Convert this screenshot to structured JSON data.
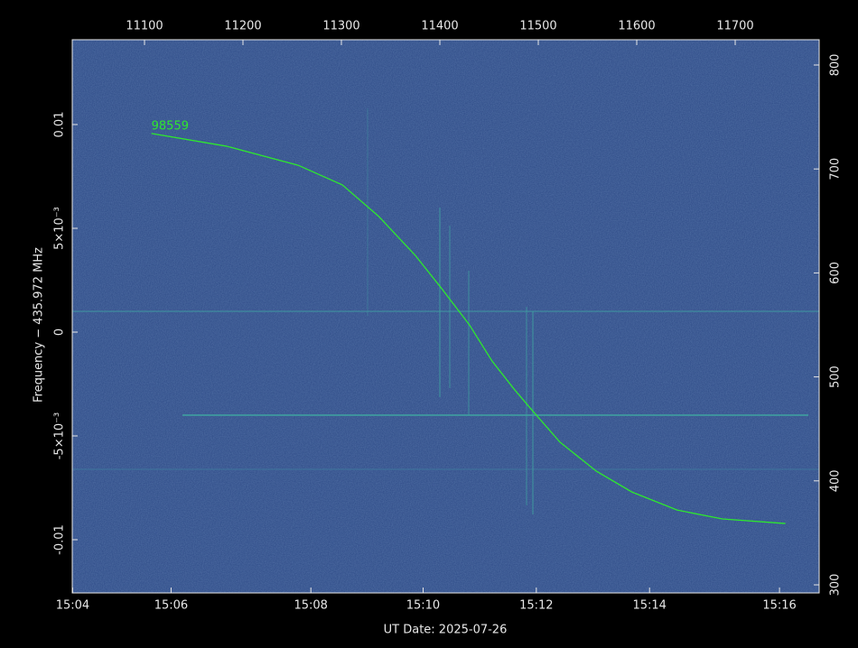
{
  "chart_data": {
    "type": "line",
    "xlabel": "UT Date: 2025-07-26",
    "ylabel": "Frequency − 435.972 MHz",
    "xlim": [
      11026.6,
      11785.3
    ],
    "xticks": [
      11100,
      11200,
      11300,
      11400,
      11500,
      11600,
      11700
    ],
    "x2ticks": [
      {
        "value": 11027,
        "label": "15:04"
      },
      {
        "value": 11127,
        "label": "15:06"
      },
      {
        "value": 11269,
        "label": "15:08"
      },
      {
        "value": 11383,
        "label": "15:10"
      },
      {
        "value": 11498,
        "label": "15:12"
      },
      {
        "value": 11613,
        "label": "15:14"
      },
      {
        "value": 11745,
        "label": "15:16"
      }
    ],
    "ylim": [
      -0.012565,
      0.014087
    ],
    "yticks": [
      {
        "value": -0.01,
        "label": "-0.01"
      },
      {
        "value": -0.005,
        "label": "-5×10⁻³"
      },
      0,
      {
        "value": 0.005,
        "label": "5×10⁻³"
      },
      0.01
    ],
    "y2lim": [
      292.2,
      824.3
    ],
    "y2ticks": [
      300,
      400,
      500,
      600,
      700,
      800
    ],
    "series": [
      {
        "name": "98559",
        "color": "#2ee82e",
        "x": [
          11107,
          11183,
          11256,
          11301,
          11338,
          11375,
          11402,
          11430,
          11453,
          11476,
          11494,
          11522,
          11559,
          11595,
          11641,
          11687,
          11751
        ],
        "values": [
          0.00957,
          0.00896,
          0.00804,
          0.00709,
          0.00557,
          0.0037,
          0.00209,
          0.00035,
          -0.00139,
          -0.00278,
          -0.00378,
          -0.0053,
          -0.0067,
          -0.0077,
          -0.00857,
          -0.009,
          -0.00922
        ]
      }
    ]
  }
}
